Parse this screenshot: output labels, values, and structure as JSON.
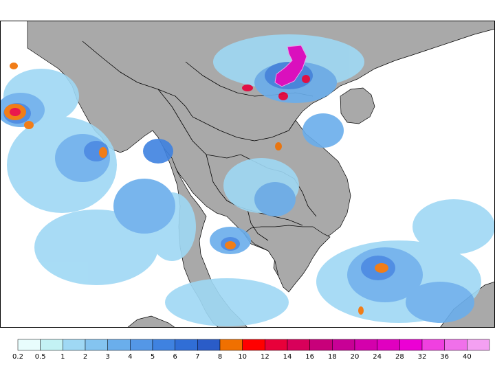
{
  "map": {
    "land_color": "#a9a9a9",
    "ocean_color": "#ffffff",
    "border_color": "#000000"
  },
  "legend": {
    "levels": [
      "0.2",
      "0.5",
      "1",
      "2",
      "3",
      "4",
      "5",
      "6",
      "7",
      "8",
      "10",
      "12",
      "14",
      "16",
      "18",
      "20",
      "24",
      "28",
      "32",
      "36",
      "40"
    ],
    "colors": [
      "#e8fdfd",
      "#c3f2f4",
      "#9fd8f4",
      "#84c4f0",
      "#6aaeec",
      "#5497e6",
      "#3f82e0",
      "#306ed6",
      "#2a5cc8",
      "#f07000",
      "#ff0000",
      "#e8003a",
      "#d8005a",
      "#c8007a",
      "#c80096",
      "#d400ac",
      "#e000c0",
      "#ec00d4",
      "#f040e0",
      "#f070ea",
      "#f4a0f2"
    ]
  },
  "precip_cells": [
    {
      "level": 2,
      "lng": 0.5,
      "lat": 0.72
    },
    {
      "level": 3,
      "lng": 0.55,
      "lat": 0.66
    }
  ]
}
